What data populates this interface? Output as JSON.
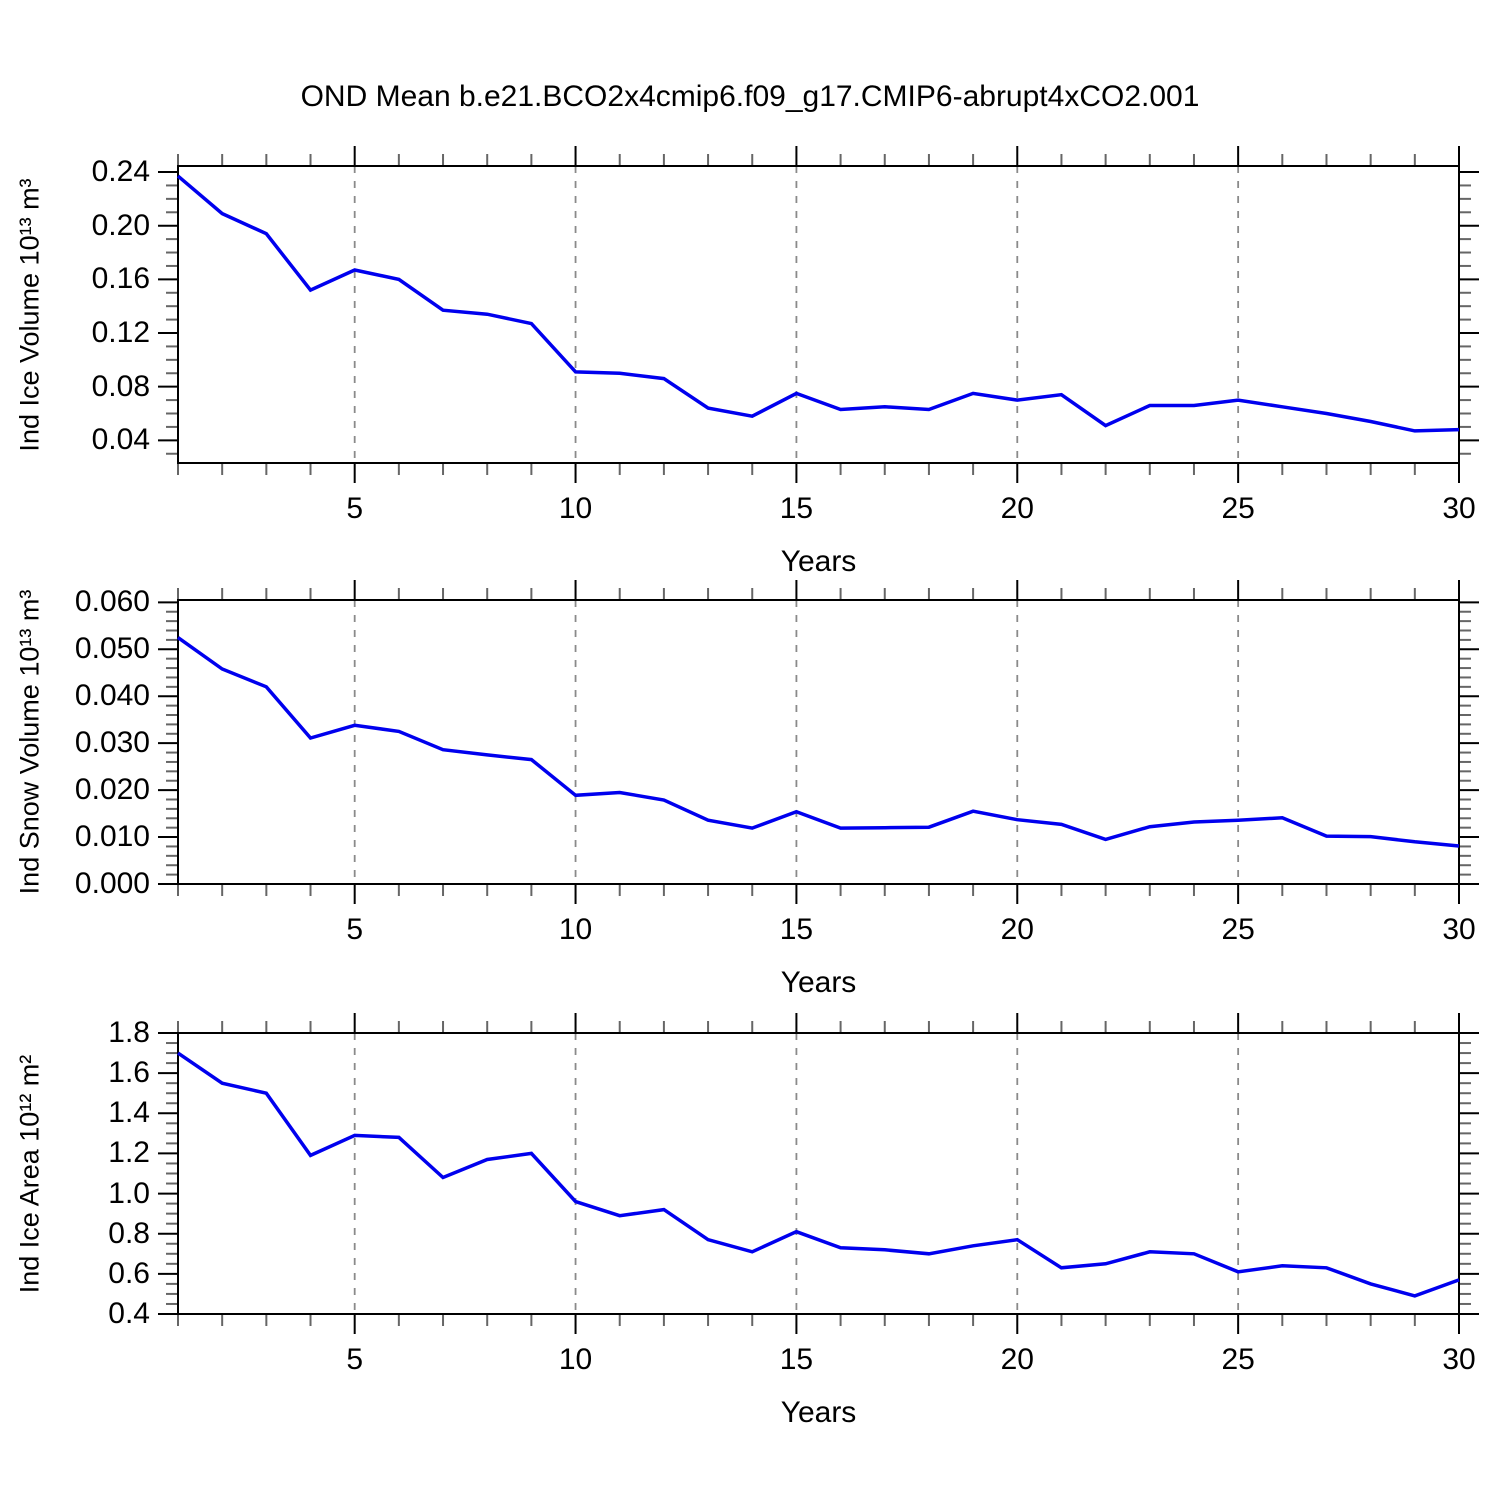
{
  "title": "OND Mean b.e21.BCO2x4cmip6.f09_g17.CMIP6-abrupt4xCO2.001",
  "colors": {
    "line": "#0000ee",
    "grid": "#8a8a8a",
    "axis": "#000000",
    "minor_tick": "#666666",
    "background": "#ffffff"
  },
  "chart_data": [
    {
      "type": "line",
      "title": "",
      "ylabel": "Ind Ice Volume 10¹³ m³",
      "xlabel": "Years",
      "x": [
        1,
        2,
        3,
        4,
        5,
        6,
        7,
        8,
        9,
        10,
        11,
        12,
        13,
        14,
        15,
        16,
        17,
        18,
        19,
        20,
        21,
        22,
        23,
        24,
        25,
        26,
        27,
        28,
        29,
        30
      ],
      "values": [
        0.237,
        0.209,
        0.194,
        0.152,
        0.167,
        0.16,
        0.137,
        0.134,
        0.127,
        0.091,
        0.09,
        0.086,
        0.064,
        0.058,
        0.075,
        0.063,
        0.065,
        0.063,
        0.075,
        0.07,
        0.074,
        0.051,
        0.066,
        0.066,
        0.07,
        0.065,
        0.06,
        0.054,
        0.047,
        0.048
      ],
      "xlim": [
        1,
        30
      ],
      "ylim": [
        0.0231,
        0.2445
      ],
      "xticks": [
        5,
        10,
        15,
        20,
        25,
        30
      ],
      "xtick_labels": [
        "5",
        "10",
        "15",
        "20",
        "25",
        "30"
      ],
      "xminor_step": 1,
      "xgrid": [
        5,
        10,
        15,
        20,
        25
      ],
      "yticks": [
        0.04,
        0.08,
        0.12,
        0.16,
        0.2,
        0.24
      ],
      "ytick_labels": [
        "0.04",
        "0.08",
        "0.12",
        "0.16",
        "0.20",
        "0.24"
      ],
      "yminor_step": 0.01,
      "grid": "vertical-dashed",
      "legend": "none"
    },
    {
      "type": "line",
      "title": "",
      "ylabel": "Ind Snow Volume 10¹³ m³",
      "xlabel": "Years",
      "x": [
        1,
        2,
        3,
        4,
        5,
        6,
        7,
        8,
        9,
        10,
        11,
        12,
        13,
        14,
        15,
        16,
        17,
        18,
        19,
        20,
        21,
        22,
        23,
        24,
        25,
        26,
        27,
        28,
        29,
        30
      ],
      "values": [
        0.0525,
        0.0458,
        0.042,
        0.0311,
        0.0338,
        0.0325,
        0.0286,
        0.0275,
        0.0265,
        0.0189,
        0.0195,
        0.0179,
        0.0136,
        0.0119,
        0.0154,
        0.0119,
        0.012,
        0.0121,
        0.0155,
        0.0137,
        0.0127,
        0.0095,
        0.0122,
        0.0132,
        0.0136,
        0.0141,
        0.0102,
        0.0101,
        0.009,
        0.0081
      ],
      "xlim": [
        1,
        30
      ],
      "ylim": [
        0.0,
        0.0605
      ],
      "xticks": [
        5,
        10,
        15,
        20,
        25,
        30
      ],
      "xtick_labels": [
        "5",
        "10",
        "15",
        "20",
        "25",
        "30"
      ],
      "xminor_step": 1,
      "xgrid": [
        5,
        10,
        15,
        20,
        25
      ],
      "yticks": [
        0.0,
        0.01,
        0.02,
        0.03,
        0.04,
        0.05,
        0.06
      ],
      "ytick_labels": [
        "0.000",
        "0.010",
        "0.020",
        "0.030",
        "0.040",
        "0.050",
        "0.060"
      ],
      "yminor_step": 0.002,
      "grid": "vertical-dashed",
      "legend": "none"
    },
    {
      "type": "line",
      "title": "",
      "ylabel": "Ind Ice Area 10¹² m²",
      "xlabel": "Years",
      "x": [
        1,
        2,
        3,
        4,
        5,
        6,
        7,
        8,
        9,
        10,
        11,
        12,
        13,
        14,
        15,
        16,
        17,
        18,
        19,
        20,
        21,
        22,
        23,
        24,
        25,
        26,
        27,
        28,
        29,
        30
      ],
      "values": [
        1.7,
        1.55,
        1.5,
        1.19,
        1.29,
        1.28,
        1.08,
        1.17,
        1.2,
        0.96,
        0.89,
        0.92,
        0.77,
        0.71,
        0.81,
        0.73,
        0.72,
        0.7,
        0.74,
        0.77,
        0.63,
        0.65,
        0.71,
        0.7,
        0.61,
        0.64,
        0.63,
        0.55,
        0.49,
        0.57
      ],
      "xlim": [
        1,
        30
      ],
      "ylim": [
        0.4,
        1.8
      ],
      "xticks": [
        5,
        10,
        15,
        20,
        25,
        30
      ],
      "xtick_labels": [
        "5",
        "10",
        "15",
        "20",
        "25",
        "30"
      ],
      "xminor_step": 1,
      "xgrid": [
        5,
        10,
        15,
        20,
        25
      ],
      "yticks": [
        0.4,
        0.6,
        0.8,
        1.0,
        1.2,
        1.4,
        1.6,
        1.8
      ],
      "ytick_labels": [
        "0.4",
        "0.6",
        "0.8",
        "1.0",
        "1.2",
        "1.4",
        "1.6",
        "1.8"
      ],
      "yminor_step": 0.05,
      "grid": "vertical-dashed",
      "legend": "none"
    }
  ]
}
